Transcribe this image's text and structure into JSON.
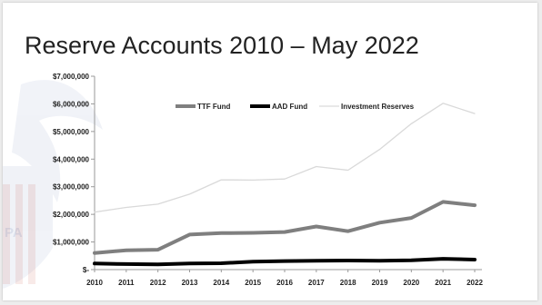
{
  "slide": {
    "title": "Reserve Accounts 2010 – May 2022"
  },
  "watermark": {
    "icon": "eagle-shield-watermark-icon",
    "text": "PA"
  },
  "colors": {
    "ttf": "#7f7f7f",
    "aad": "#000000",
    "investment": "#d9d9d9",
    "axis": "#9a9a9a"
  },
  "chart_data": {
    "type": "line",
    "title": "",
    "xlabel": "",
    "ylabel": "",
    "categories": [
      "2010",
      "2011",
      "2012",
      "2013",
      "2014",
      "2015",
      "2016",
      "2017",
      "2018",
      "2019",
      "2020",
      "2021",
      "2022"
    ],
    "ylim": [
      0,
      7000000
    ],
    "y_ticks": [
      0,
      1000000,
      2000000,
      3000000,
      4000000,
      5000000,
      6000000,
      7000000
    ],
    "y_tick_labels": [
      "$-",
      "$1,000,000",
      "$2,000,000",
      "$3,000,000",
      "$4,000,000",
      "$5,000,000",
      "$6,000,000",
      "$7,000,000"
    ],
    "grid": false,
    "legend_position": "top",
    "series": [
      {
        "name": "TTF Fund",
        "color": "#7f7f7f",
        "values": [
          600000,
          700000,
          720000,
          1270000,
          1320000,
          1330000,
          1360000,
          1560000,
          1390000,
          1700000,
          1870000,
          2450000,
          2330000
        ]
      },
      {
        "name": "AAD Fund",
        "color": "#000000",
        "values": [
          220000,
          200000,
          190000,
          220000,
          230000,
          290000,
          310000,
          320000,
          330000,
          320000,
          340000,
          390000,
          360000
        ]
      },
      {
        "name": "Investment Reserves",
        "color": "#d9d9d9",
        "values": [
          2080000,
          2250000,
          2370000,
          2730000,
          3250000,
          3240000,
          3280000,
          3730000,
          3600000,
          4350000,
          5280000,
          6020000,
          5650000
        ]
      }
    ]
  }
}
